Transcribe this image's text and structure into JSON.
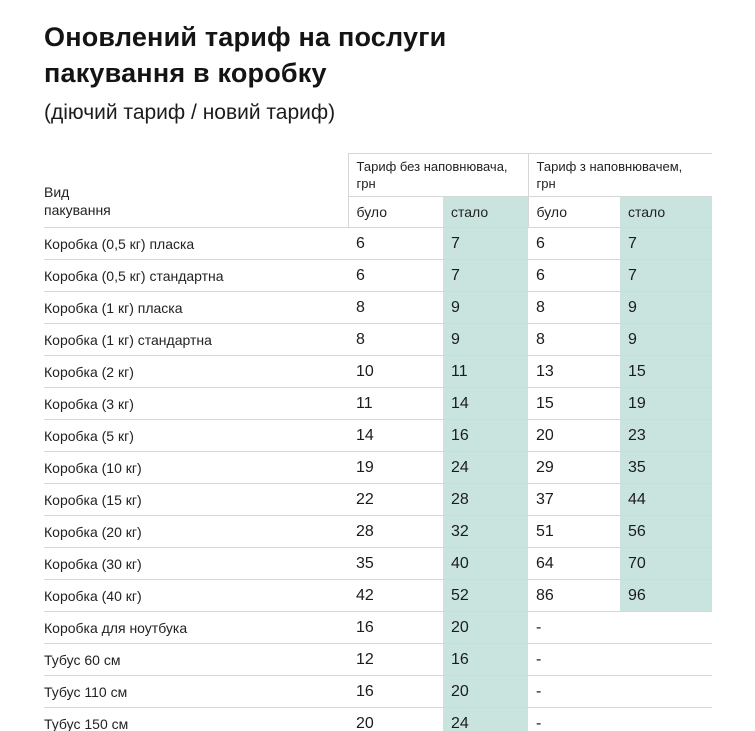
{
  "page": {
    "title": "Оновлений тариф на послуги\nпакування в коробку",
    "subtitle": "(діючий тариф / новий тариф)"
  },
  "table": {
    "accent_color": "#c9e4de",
    "row_header": "Вид\nпакування",
    "group_headers": [
      "Тариф без наповнювача,\nгрн",
      "Тариф з наповнювачем,\nгрн"
    ],
    "sub_headers": [
      "було",
      "стало",
      "було",
      "стало"
    ],
    "rows": [
      {
        "label": "Коробка (0,5 кг) пласка",
        "values": [
          "6",
          "7",
          "6",
          "7"
        ]
      },
      {
        "label": "Коробка (0,5 кг) стандартна",
        "values": [
          "6",
          "7",
          "6",
          "7"
        ]
      },
      {
        "label": "Коробка (1 кг) пласка",
        "values": [
          "8",
          "9",
          "8",
          "9"
        ]
      },
      {
        "label": "Коробка (1 кг) стандартна",
        "values": [
          "8",
          "9",
          "8",
          "9"
        ]
      },
      {
        "label": "Коробка (2 кг)",
        "values": [
          "10",
          "11",
          "13",
          "15"
        ]
      },
      {
        "label": "Коробка (3 кг)",
        "values": [
          "11",
          "14",
          "15",
          "19"
        ]
      },
      {
        "label": "Коробка (5 кг)",
        "values": [
          "14",
          "16",
          "20",
          "23"
        ]
      },
      {
        "label": "Коробка (10 кг)",
        "values": [
          "19",
          "24",
          "29",
          "35"
        ]
      },
      {
        "label": "Коробка (15 кг)",
        "values": [
          "22",
          "28",
          "37",
          "44"
        ]
      },
      {
        "label": "Коробка (20 кг)",
        "values": [
          "28",
          "32",
          "51",
          "56"
        ]
      },
      {
        "label": "Коробка (30 кг)",
        "values": [
          "35",
          "40",
          "64",
          "70"
        ]
      },
      {
        "label": "Коробка (40 кг)",
        "values": [
          "42",
          "52",
          "86",
          "96"
        ]
      },
      {
        "label": "Коробка для ноутбука",
        "values": [
          "16",
          "20",
          "-",
          ""
        ]
      },
      {
        "label": "Тубус 60 см",
        "values": [
          "12",
          "16",
          "-",
          ""
        ]
      },
      {
        "label": "Тубус 110 см",
        "values": [
          "16",
          "20",
          "-",
          ""
        ]
      },
      {
        "label": "Тубус 150 см",
        "values": [
          "20",
          "24",
          "-",
          ""
        ]
      }
    ]
  }
}
